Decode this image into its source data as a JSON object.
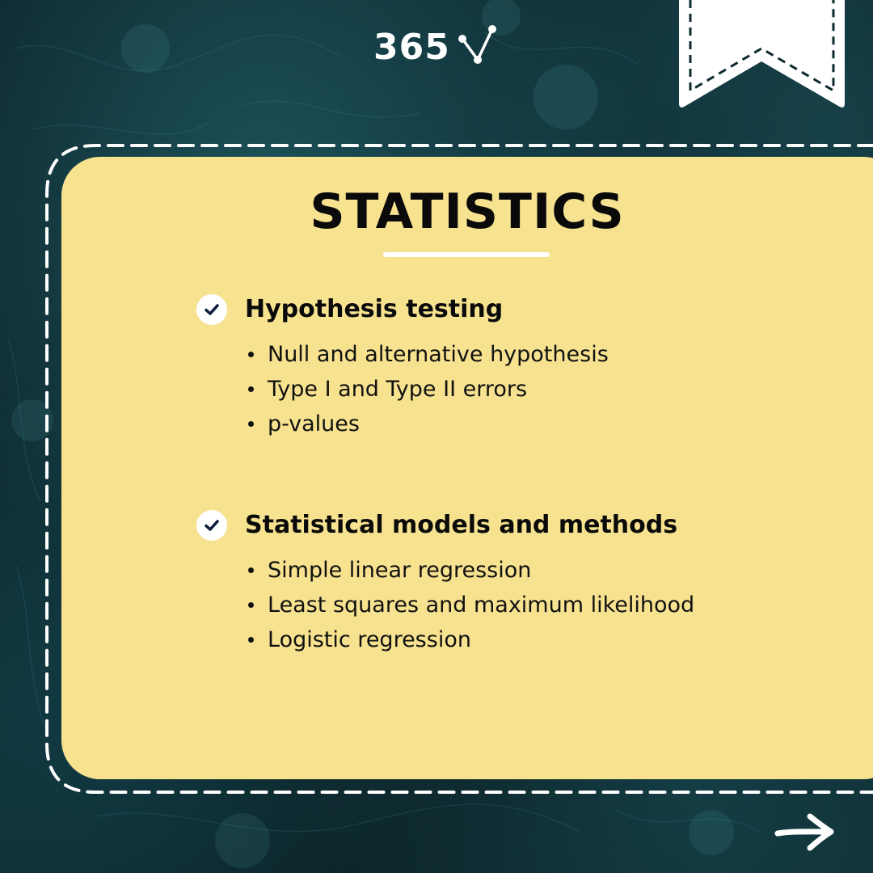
{
  "brand": {
    "logo_text": "365"
  },
  "card": {
    "title": "STATISTICS",
    "background_color": "#f7e290",
    "sections": [
      {
        "title": "Hypothesis testing",
        "icon": "check-icon",
        "items": [
          "Null and alternative hypothesis",
          "Type I and Type II errors",
          "p-values"
        ]
      },
      {
        "title": "Statistical models and methods",
        "icon": "check-icon",
        "items": [
          "Simple linear regression",
          "Least squares and maximum likelihood",
          "Logistic regression"
        ]
      }
    ]
  },
  "decor": {
    "bookmark_icon": "bookmark-icon",
    "next_icon": "arrow-right-icon"
  }
}
